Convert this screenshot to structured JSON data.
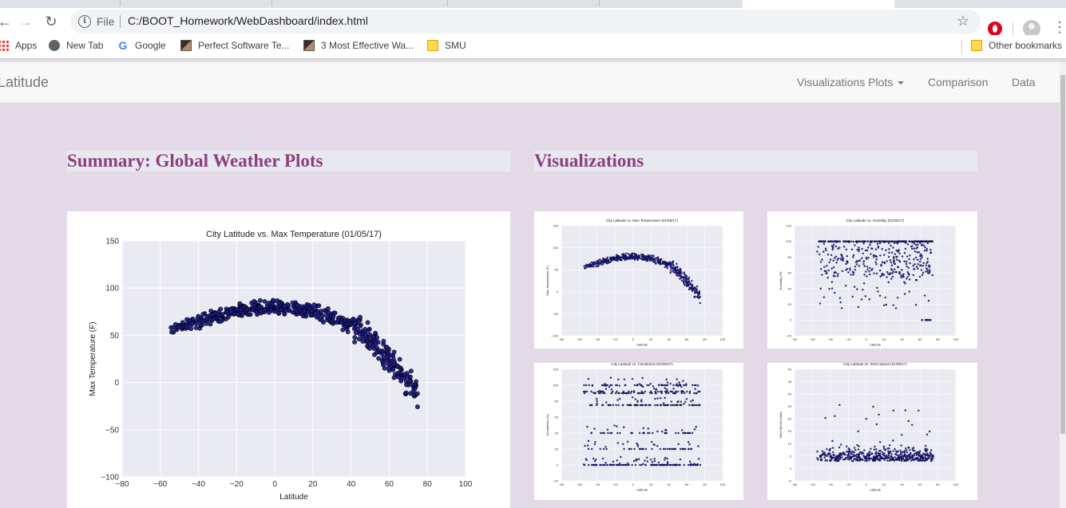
{
  "browser": {
    "address_scheme": "File",
    "url": "C:/BOOT_Homework/WebDashboard/index.html",
    "bookmarks": [
      {
        "label": "Apps",
        "icon": "apps-grid-icon"
      },
      {
        "label": "New Tab",
        "icon": "globe-icon"
      },
      {
        "label": "Google",
        "icon": "google-icon"
      },
      {
        "label": "Perfect Software Te...",
        "icon": "cube-icon"
      },
      {
        "label": "3 Most Effective Wa...",
        "icon": "cube-icon"
      },
      {
        "label": "SMU",
        "icon": "folder-icon"
      }
    ],
    "other_bookmarks": "Other bookmarks"
  },
  "navbar": {
    "brand": "Latitude",
    "items": [
      "Visualizations Plots",
      "Comparison",
      "Data"
    ]
  },
  "summary": {
    "title": "Summary: Global Weather Plots"
  },
  "visualizations": {
    "title": "Visualizations"
  },
  "chart_data": [
    {
      "id": "main",
      "type": "scatter",
      "title": "City Latitude vs. Max Temperature (01/05/17)",
      "xlabel": "Latitude",
      "ylabel": "Max Temperature (F)",
      "xlim": [
        -80,
        100
      ],
      "ylim": [
        -100,
        150
      ],
      "xticks": [
        -80,
        -60,
        -40,
        -20,
        0,
        20,
        40,
        60,
        80,
        100
      ],
      "yticks": [
        -100,
        -50,
        0,
        50,
        100,
        150
      ],
      "grid": true,
      "color": "#1a1a8c"
    },
    {
      "id": "temp",
      "type": "scatter",
      "title": "City Latitude vs. Max Temperature (01/05/17)",
      "xlabel": "Latitude",
      "ylabel": "Max Temperature (F)",
      "xlim": [
        -80,
        100
      ],
      "ylim": [
        -100,
        150
      ],
      "xticks": [
        -80,
        -60,
        -40,
        -20,
        0,
        20,
        40,
        60,
        80,
        100
      ],
      "yticks": [
        -100,
        -50,
        0,
        50,
        100,
        150
      ],
      "grid": true,
      "color": "#1a1a8c"
    },
    {
      "id": "humidity",
      "type": "scatter",
      "title": "City Latitude vs. Humidity (01/05/17)",
      "xlabel": "Latitude",
      "ylabel": "Humidity (%)",
      "xlim": [
        -80,
        100
      ],
      "ylim": [
        -20,
        120
      ],
      "xticks": [
        -80,
        -60,
        -40,
        -20,
        0,
        20,
        40,
        60,
        80,
        100
      ],
      "yticks": [
        -20,
        0,
        20,
        40,
        60,
        80,
        100,
        120
      ],
      "grid": true,
      "color": "#1a1a8c"
    },
    {
      "id": "cloudiness",
      "type": "scatter",
      "title": "City Latitude vs. Cloudiness (01/05/17)",
      "xlabel": "Latitude",
      "ylabel": "Cloudiness (%)",
      "xlim": [
        -80,
        100
      ],
      "ylim": [
        -20,
        120
      ],
      "xticks": [
        -80,
        -60,
        -40,
        -20,
        0,
        20,
        40,
        60,
        80,
        100
      ],
      "yticks": [
        -20,
        0,
        20,
        40,
        60,
        80,
        100,
        120
      ],
      "grid": true,
      "color": "#1a1a8c"
    },
    {
      "id": "wind",
      "type": "scatter",
      "title": "City Latitude vs. Wind Speed (01/05/17)",
      "xlabel": "Latitude",
      "ylabel": "Wind Speed (mph)",
      "xlim": [
        -80,
        100
      ],
      "ylim": [
        -5,
        40
      ],
      "xticks": [
        -80,
        -60,
        -40,
        -20,
        0,
        20,
        40,
        60,
        80,
        100
      ],
      "yticks": [
        -5,
        0,
        5,
        10,
        15,
        20,
        25,
        30,
        35,
        40
      ],
      "grid": true,
      "color": "#1a1a8c"
    }
  ]
}
